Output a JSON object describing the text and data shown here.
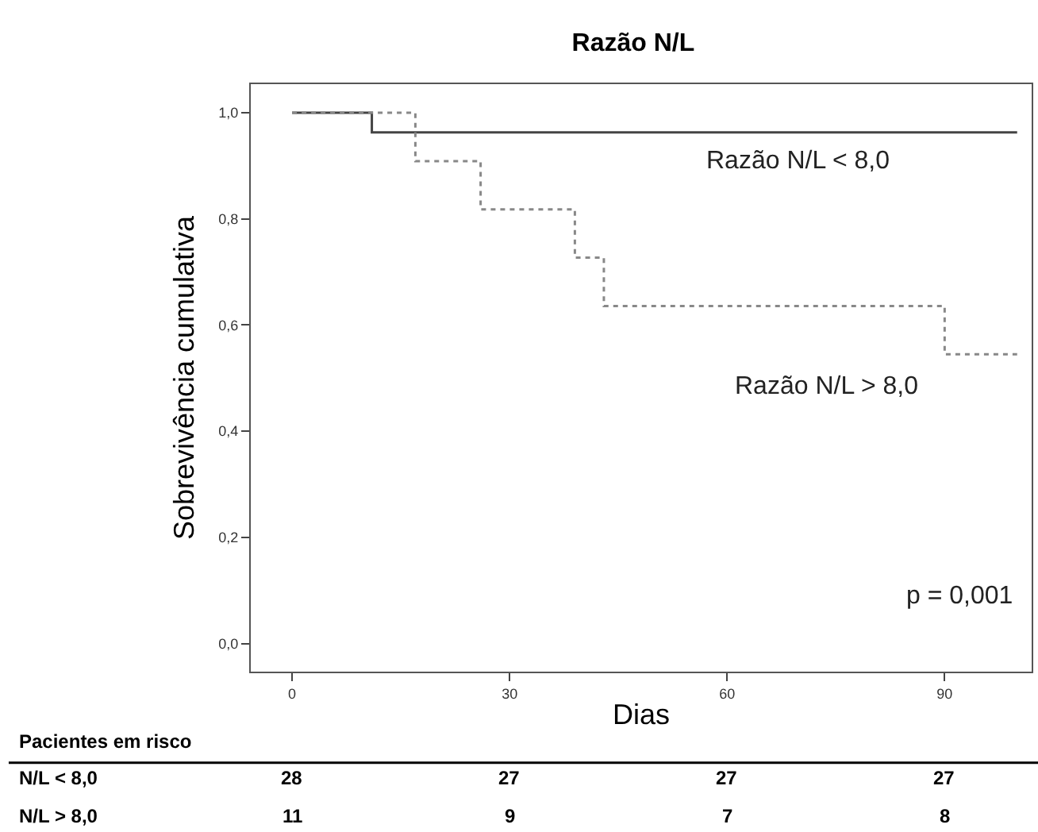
{
  "chart_data": {
    "type": "step",
    "title": "Razão N/L",
    "xlabel": "Dias",
    "ylabel": "Sobrevivência cumulativa",
    "series": [
      {
        "name": "Razão N/L < 8,0",
        "color": "#444444",
        "line_style": "solid",
        "x": [
          0,
          11,
          100
        ],
        "values": [
          1,
          0.963,
          0.963
        ]
      },
      {
        "name": "Razão N/L > 8,0",
        "color": "#888888",
        "line_style": "dotted",
        "x": [
          0,
          17,
          26,
          39,
          43,
          90,
          100
        ],
        "values": [
          1,
          0.909,
          0.818,
          0.727,
          0.636,
          0.545,
          0.545
        ]
      }
    ],
    "xlim": [
      -5.7,
      102
    ],
    "xticks": [
      0,
      30,
      60,
      90
    ],
    "ylim": [
      -0.053,
      1.054
    ],
    "yticks": [
      {
        "value": 0,
        "label": "0,0"
      },
      {
        "value": 0.2,
        "label": "0,2"
      },
      {
        "value": 0.4,
        "label": "0,4"
      },
      {
        "value": 0.6,
        "label": "0,6"
      },
      {
        "value": 0.8,
        "label": "0,8"
      },
      {
        "value": 1,
        "label": "1,0"
      }
    ],
    "legend": false,
    "annotations": [
      "p = 0,001",
      "Pacientes em risco",
      "N/L < 8,0",
      "28",
      "27",
      "27",
      "27",
      "N/L > 8,0",
      "11",
      "9",
      "7",
      "8"
    ]
  }
}
